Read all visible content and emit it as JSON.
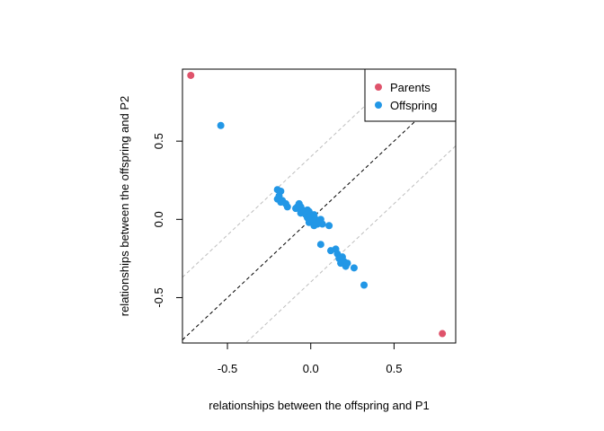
{
  "chart_data": {
    "type": "scatter",
    "xlabel": "relationships between the offspring and P1",
    "ylabel": "relationships between the offspring and P2",
    "xlim": [
      -0.77,
      0.87
    ],
    "ylim": [
      -0.79,
      0.96
    ],
    "xticks": [
      -0.5,
      0.0,
      0.5
    ],
    "xtick_labels": [
      "-0.5",
      "0.0",
      "0.5"
    ],
    "yticks": [
      -0.5,
      0.0,
      0.5
    ],
    "ytick_labels": [
      "-0.5",
      "0.0",
      "0.5"
    ],
    "grid": false,
    "legend_position": "top-right",
    "reference_lines": [
      {
        "slope": 1,
        "intercept": 0,
        "style": "dashed",
        "color": "#000000"
      },
      {
        "slope": 1,
        "intercept": 0.4,
        "style": "dashed",
        "color": "#bebebe"
      },
      {
        "slope": 1,
        "intercept": -0.4,
        "style": "dashed",
        "color": "#bebebe"
      }
    ],
    "series": [
      {
        "name": "Parents",
        "color": "#df536b",
        "points": [
          [
            -0.72,
            0.92
          ],
          [
            0.79,
            -0.73
          ]
        ]
      },
      {
        "name": "Offspring",
        "color": "#2297e6",
        "points": [
          [
            -0.54,
            0.6
          ],
          [
            -0.2,
            0.19
          ],
          [
            -0.18,
            0.18
          ],
          [
            -0.19,
            0.15
          ],
          [
            -0.2,
            0.13
          ],
          [
            -0.17,
            0.12
          ],
          [
            -0.18,
            0.11
          ],
          [
            -0.15,
            0.1
          ],
          [
            -0.14,
            0.08
          ],
          [
            -0.08,
            0.08
          ],
          [
            -0.09,
            0.07
          ],
          [
            -0.07,
            0.1
          ],
          [
            -0.06,
            0.08
          ],
          [
            -0.05,
            0.06
          ],
          [
            -0.06,
            0.04
          ],
          [
            -0.04,
            0.05
          ],
          [
            -0.03,
            0.03
          ],
          [
            -0.02,
            0.06
          ],
          [
            -0.01,
            0.05
          ],
          [
            -0.02,
            0.01
          ],
          [
            0.0,
            0.02
          ],
          [
            -0.01,
            -0.02
          ],
          [
            0.01,
            -0.01
          ],
          [
            0.02,
            0.03
          ],
          [
            0.03,
            0.0
          ],
          [
            0.04,
            -0.03
          ],
          [
            0.05,
            -0.02
          ],
          [
            0.06,
            0.0
          ],
          [
            0.02,
            -0.04
          ],
          [
            0.07,
            -0.03
          ],
          [
            0.11,
            -0.04
          ],
          [
            0.06,
            -0.16
          ],
          [
            0.12,
            -0.2
          ],
          [
            0.15,
            -0.19
          ],
          [
            0.16,
            -0.22
          ],
          [
            0.17,
            -0.25
          ],
          [
            0.19,
            -0.24
          ],
          [
            0.18,
            -0.28
          ],
          [
            0.2,
            -0.27
          ],
          [
            0.21,
            -0.3
          ],
          [
            0.22,
            -0.28
          ],
          [
            0.26,
            -0.31
          ],
          [
            0.32,
            -0.42
          ]
        ]
      }
    ]
  }
}
